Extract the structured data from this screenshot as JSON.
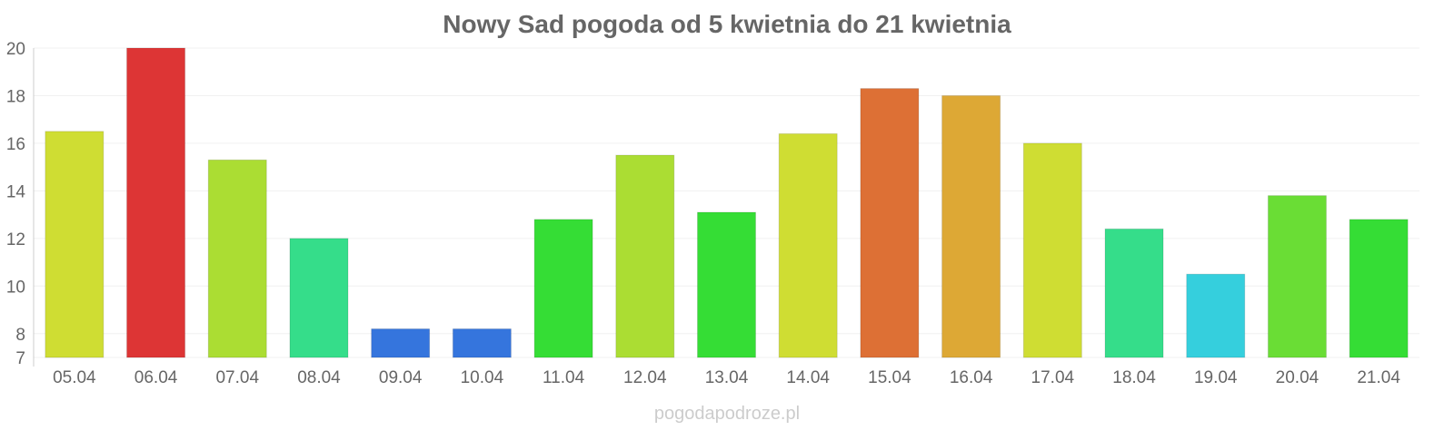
{
  "chart_data": {
    "type": "bar",
    "title": "Nowy Sad pogoda od 5 kwietnia do 21 kwietnia",
    "xlabel": "",
    "ylabel": "",
    "ylim": [
      7,
      20
    ],
    "yticks": [
      7,
      8,
      10,
      12,
      14,
      16,
      18,
      20
    ],
    "grid": true,
    "categories": [
      "05.04",
      "06.04",
      "07.04",
      "08.04",
      "09.04",
      "10.04",
      "11.04",
      "12.04",
      "13.04",
      "14.04",
      "15.04",
      "16.04",
      "17.04",
      "18.04",
      "19.04",
      "20.04",
      "21.04"
    ],
    "values": [
      16.5,
      20,
      15.3,
      12.0,
      8.2,
      8.2,
      12.8,
      15.5,
      13.1,
      16.4,
      18.3,
      18.0,
      16.0,
      12.4,
      10.5,
      13.8,
      12.8
    ],
    "colors": [
      "#cfdd33",
      "#dd3535",
      "#abdd33",
      "#35dd8a",
      "#3575dd",
      "#3575dd",
      "#35dd35",
      "#abdd33",
      "#35dd35",
      "#cfdd33",
      "#dd7035",
      "#dda835",
      "#cfdd33",
      "#35dd8a",
      "#35cfdd",
      "#6add35",
      "#35dd35"
    ]
  },
  "watermark": "pogodapodroze.pl"
}
